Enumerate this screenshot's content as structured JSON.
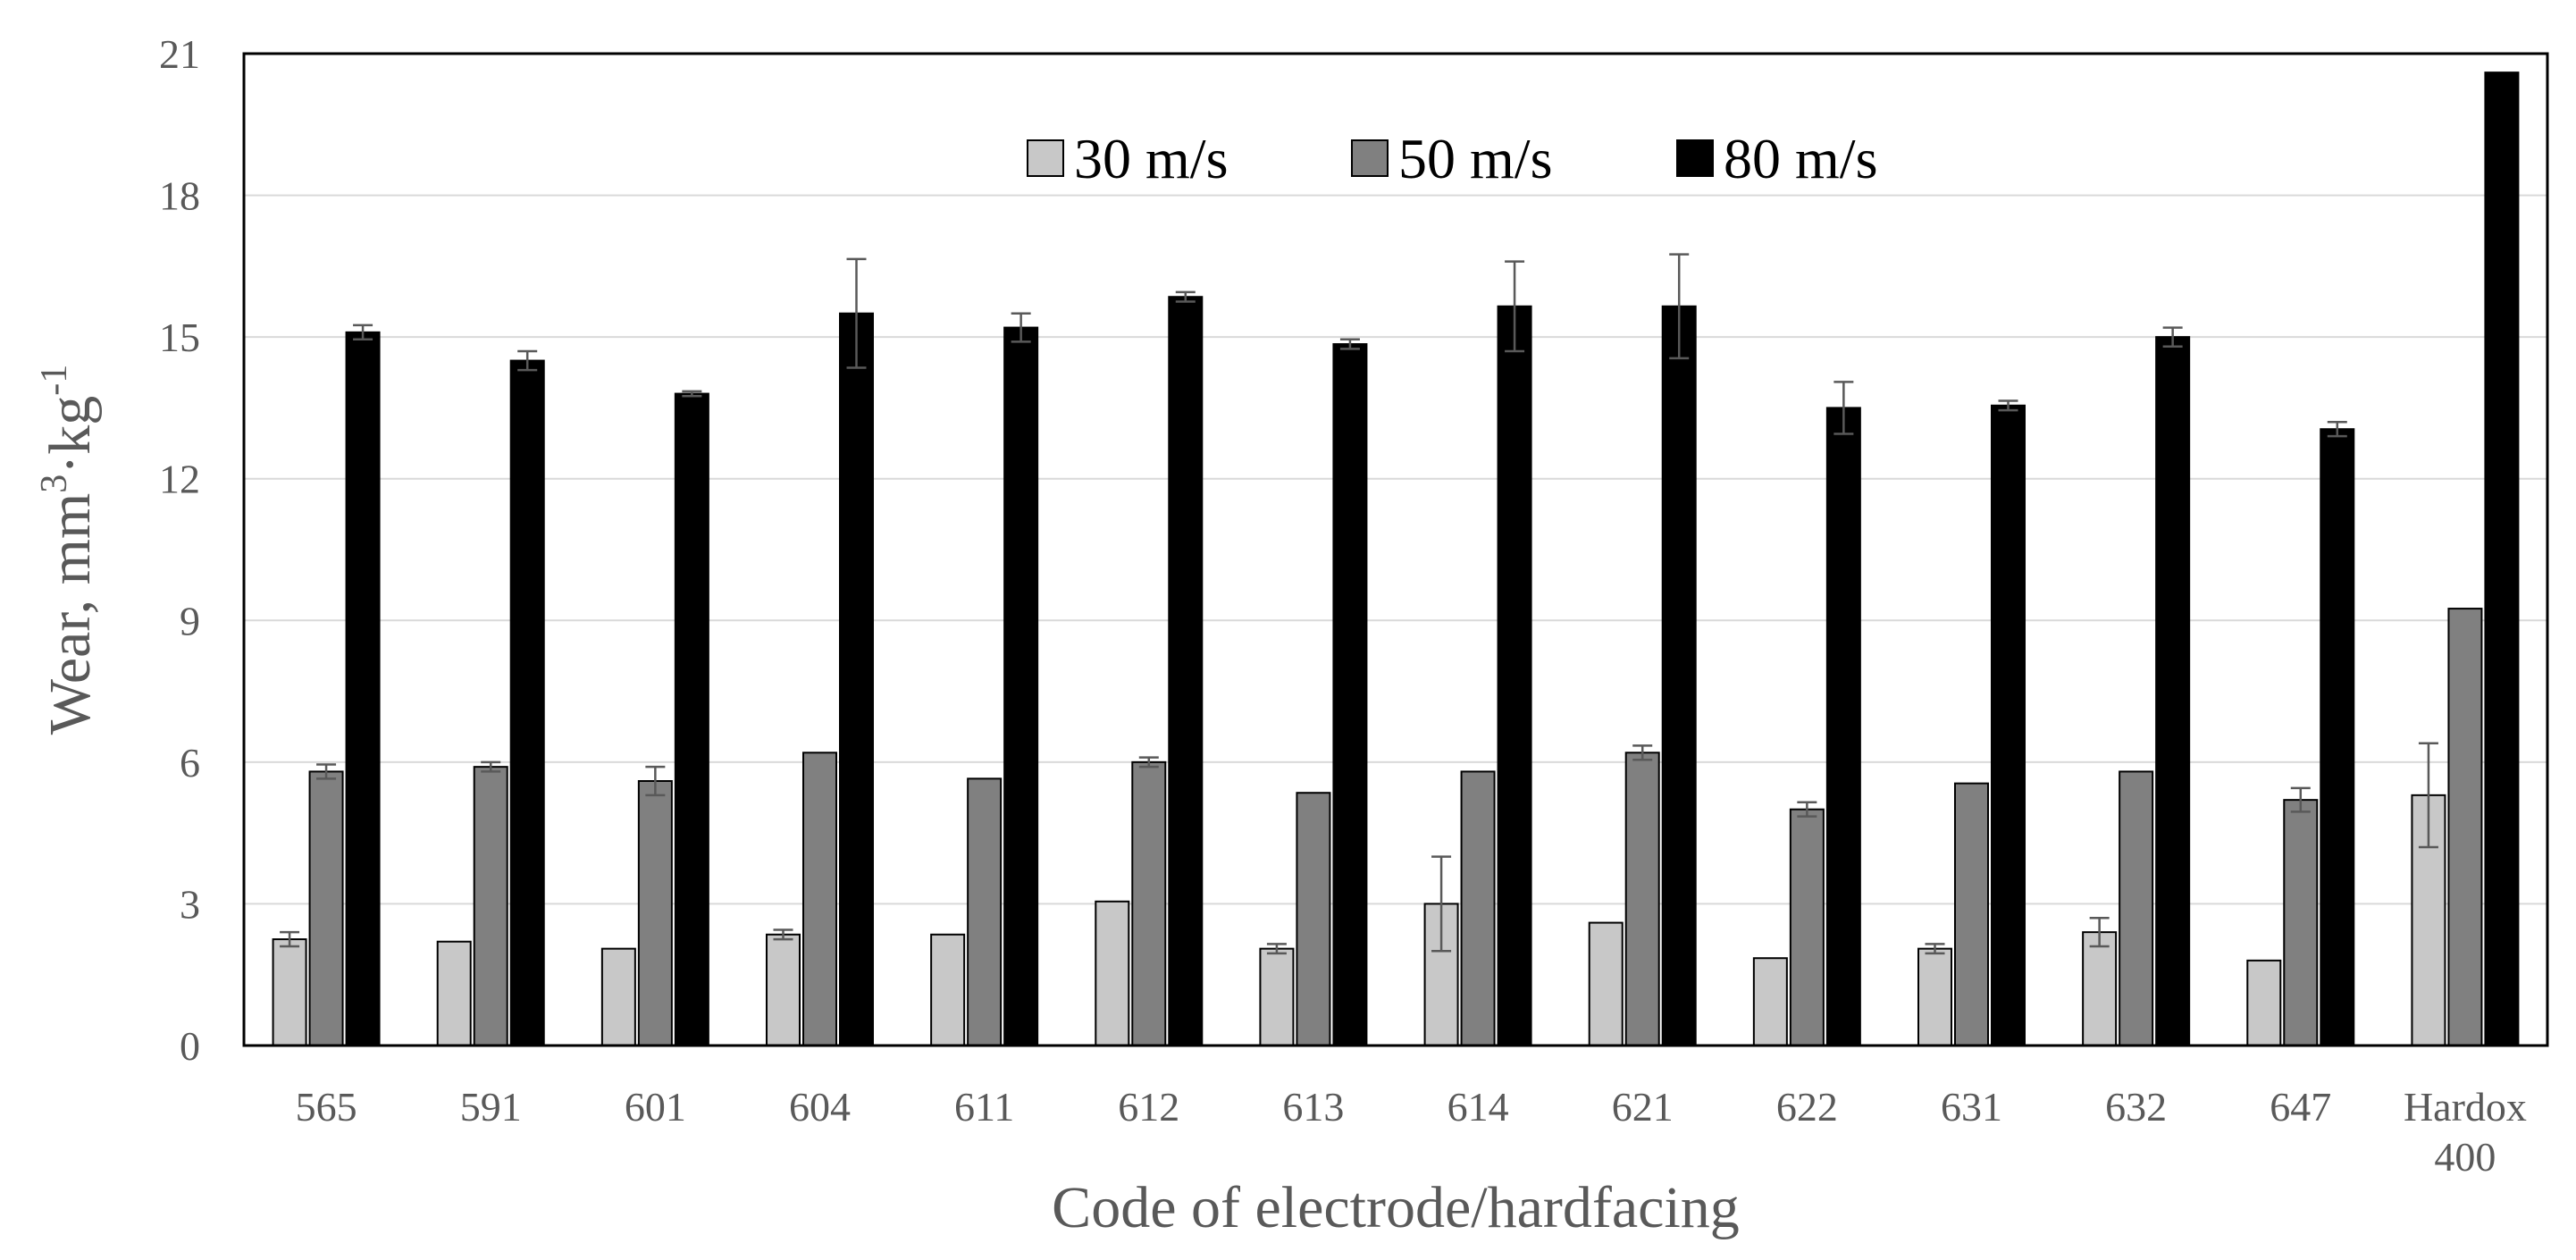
{
  "chart_data": {
    "type": "bar",
    "title": "",
    "xlabel": "Code of electrode/hardfacing",
    "ylabel": {
      "prefix": "Wear, mm",
      "sup1": "3",
      "middle": "·kg",
      "sup2": "-1"
    },
    "ylim": [
      0,
      21
    ],
    "yticks": [
      "0",
      "3",
      "6",
      "9",
      "12",
      "15",
      "18",
      "21"
    ],
    "grid": true,
    "legend_position": "top-center",
    "categories": [
      [
        "565"
      ],
      [
        "591"
      ],
      [
        "601"
      ],
      [
        "604"
      ],
      [
        "611"
      ],
      [
        "612"
      ],
      [
        "613"
      ],
      [
        "614"
      ],
      [
        "621"
      ],
      [
        "622"
      ],
      [
        "631"
      ],
      [
        "632"
      ],
      [
        "647"
      ],
      [
        "Hardox",
        "400"
      ]
    ],
    "series": [
      {
        "name": "30 m/s",
        "color": "#c8c8c8",
        "values": [
          2.25,
          2.2,
          2.05,
          2.35,
          2.35,
          3.05,
          2.05,
          3.0,
          2.6,
          1.85,
          2.05,
          2.4,
          1.8,
          5.3
        ],
        "errors": [
          0.15,
          0.0,
          0.0,
          0.1,
          0.0,
          0.0,
          0.1,
          1.0,
          0.0,
          0.0,
          0.1,
          0.3,
          0.0,
          1.1
        ]
      },
      {
        "name": "50 m/s",
        "color": "#808080",
        "values": [
          5.8,
          5.9,
          5.6,
          6.2,
          5.65,
          6.0,
          5.35,
          5.8,
          6.2,
          5.0,
          5.55,
          5.8,
          5.2,
          9.25
        ],
        "errors": [
          0.15,
          0.1,
          0.3,
          0.0,
          0.0,
          0.1,
          0.0,
          0.0,
          0.15,
          0.15,
          0.0,
          0.0,
          0.25,
          0.0
        ]
      },
      {
        "name": "80 m/s",
        "color": "#000000",
        "values": [
          15.1,
          14.5,
          13.8,
          15.5,
          15.2,
          15.85,
          14.85,
          15.65,
          15.65,
          13.5,
          13.55,
          15.0,
          13.05,
          20.6
        ],
        "errors": [
          0.15,
          0.2,
          0.05,
          1.15,
          0.3,
          0.1,
          0.1,
          0.95,
          1.1,
          0.55,
          0.1,
          0.2,
          0.15,
          0.0
        ]
      }
    ]
  }
}
